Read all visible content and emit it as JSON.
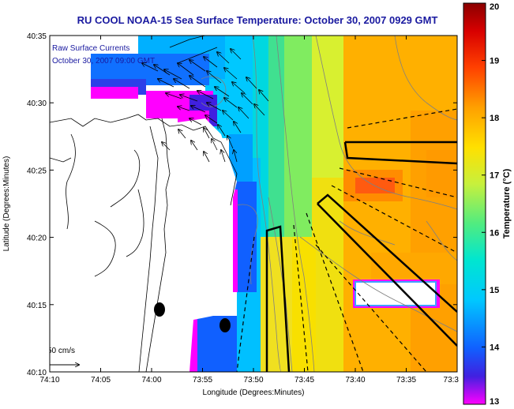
{
  "title": "RU COOL  NOAA-15  Sea Surface Temperature:  October 30, 2007 0929 GMT",
  "inset": {
    "line1": "Raw Surface Currents",
    "line2": "October 30, 2007 09:00 GMT"
  },
  "axes": {
    "xlabel": "Longitude (Degrees:Minutes)",
    "ylabel": "Latitude (Degrees:Minutes)",
    "x_ticks": [
      "74:10",
      "74:05",
      "74:00",
      "73:55",
      "73:50",
      "73:45",
      "73:40",
      "73:35",
      "73:3"
    ],
    "y_ticks": [
      "40:35",
      "40:30",
      "40:25",
      "40:20",
      "40:15",
      "40:10"
    ]
  },
  "colorbar": {
    "label": "Temperature (°C)",
    "ticks": [
      "20",
      "19",
      "18",
      "17",
      "16",
      "15",
      "14",
      "13"
    ],
    "min": 13,
    "max": 20,
    "colors": [
      "#ff00ff",
      "#3030e0",
      "#00aaff",
      "#00e0e0",
      "#40e880",
      "#c8f03c",
      "#ffe000",
      "#ffa000",
      "#ff5000",
      "#e00000",
      "#8b0000"
    ]
  },
  "scale": {
    "label": "50 cm/s"
  },
  "colors": {
    "title": "#1a1aa0",
    "land": "#ffffff",
    "coast": "#000000",
    "bathymetry": "#808080"
  }
}
